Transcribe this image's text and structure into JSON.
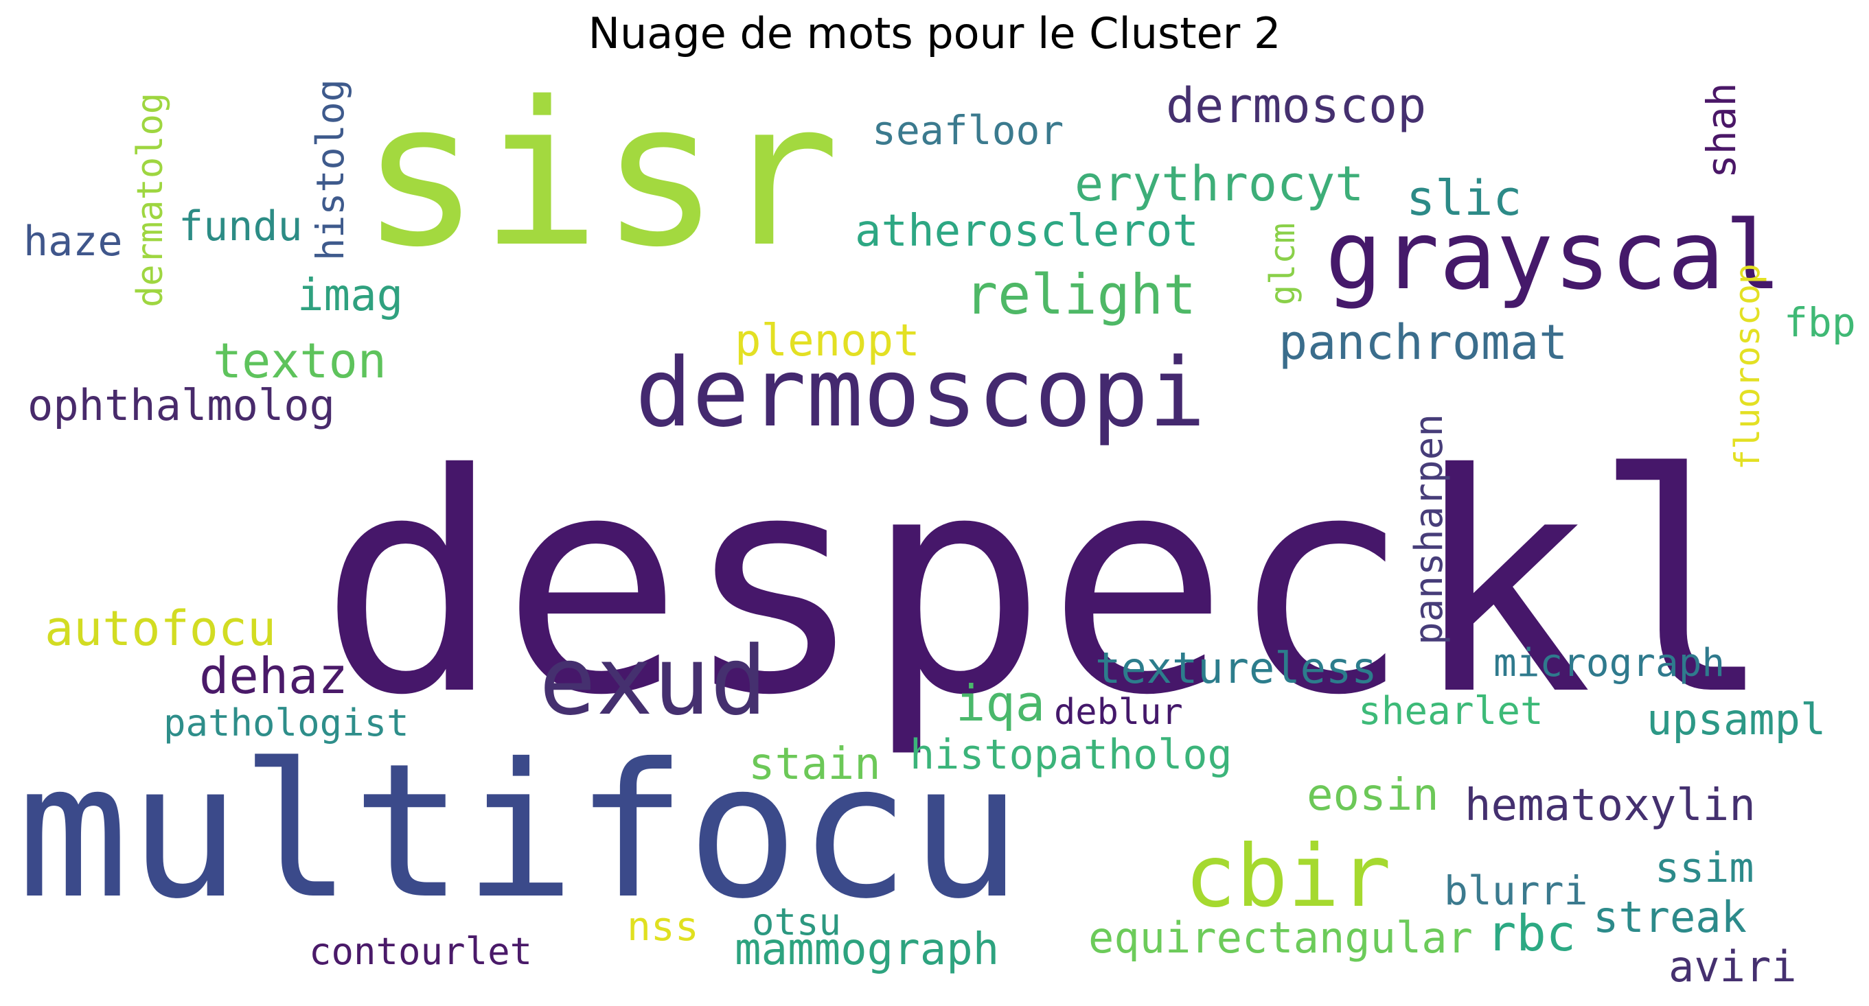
{
  "title": "Nuage de mots pour le Cluster 2",
  "words": [
    {
      "text": "despeckl",
      "color": "#46176a"
    },
    {
      "text": "multifocu",
      "color": "#3b4a8a"
    },
    {
      "text": "sisr",
      "color": "#a3d93f"
    },
    {
      "text": "dermoscopi",
      "color": "#44296f"
    },
    {
      "text": "grayscal",
      "color": "#45196a"
    },
    {
      "text": "exud",
      "color": "#45306f"
    },
    {
      "text": "cbir",
      "color": "#a5d92f"
    },
    {
      "text": "dermoscop",
      "color": "#45306f"
    },
    {
      "text": "erythrocyt",
      "color": "#3dae78"
    },
    {
      "text": "relight",
      "color": "#4eb866"
    },
    {
      "text": "panchromat",
      "color": "#3a6d8c"
    },
    {
      "text": "slic",
      "color": "#2c8a87"
    },
    {
      "text": "atherosclerot",
      "color": "#2da783"
    },
    {
      "text": "seafloor",
      "color": "#3b7a8e"
    },
    {
      "text": "shah",
      "color": "#4a1767"
    },
    {
      "text": "histolog",
      "color": "#3e5a8c"
    },
    {
      "text": "dermatolog",
      "color": "#9ed640"
    },
    {
      "text": "fundu",
      "color": "#2c8c85"
    },
    {
      "text": "haze",
      "color": "#3f568b"
    },
    {
      "text": "imag",
      "color": "#2fa17f"
    },
    {
      "text": "glcm",
      "color": "#8ad049"
    },
    {
      "text": "fluoroscop",
      "color": "#e3e023"
    },
    {
      "text": "fbp",
      "color": "#3fb975"
    },
    {
      "text": "texton",
      "color": "#5ec35c"
    },
    {
      "text": "plenopt",
      "color": "#e3e023"
    },
    {
      "text": "ophthalmolog",
      "color": "#482a6b"
    },
    {
      "text": "pansharpen",
      "color": "#473d79"
    },
    {
      "text": "autofocu",
      "color": "#d2dc22"
    },
    {
      "text": "dehaz",
      "color": "#4a1a69"
    },
    {
      "text": "textureless",
      "color": "#2c7d8c"
    },
    {
      "text": "micrograph",
      "color": "#2f7a8d"
    },
    {
      "text": "iqa",
      "color": "#4ab86b"
    },
    {
      "text": "deblur",
      "color": "#44186a"
    },
    {
      "text": "pathologist",
      "color": "#2e8e8a"
    },
    {
      "text": "shearlet",
      "color": "#3dba78"
    },
    {
      "text": "upsampl",
      "color": "#2c9886"
    },
    {
      "text": "stain",
      "color": "#6cc858"
    },
    {
      "text": "histopatholog",
      "color": "#3bb47a"
    },
    {
      "text": "eosin",
      "color": "#6cc858"
    },
    {
      "text": "hematoxylin",
      "color": "#44306f"
    },
    {
      "text": "ssim",
      "color": "#2c8a8a"
    },
    {
      "text": "blurri",
      "color": "#3b7a8e"
    },
    {
      "text": "nss",
      "color": "#e0e020"
    },
    {
      "text": "otsu",
      "color": "#2c9880"
    },
    {
      "text": "streak",
      "color": "#2c8a8a"
    },
    {
      "text": "rbc",
      "color": "#2ca983"
    },
    {
      "text": "equirectangular",
      "color": "#6ccb5a"
    },
    {
      "text": "contourlet",
      "color": "#4a1a69"
    },
    {
      "text": "mammograph",
      "color": "#2da37f"
    },
    {
      "text": "aviri",
      "color": "#45306f"
    }
  ]
}
